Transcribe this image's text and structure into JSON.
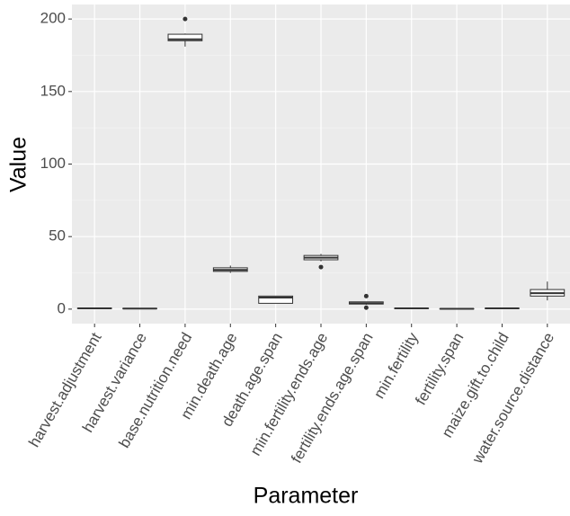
{
  "chart_data": {
    "type": "boxplot",
    "x_label": "Parameter",
    "y_label": "Value",
    "categories": [
      "harvest.adjustment",
      "harvest.variance",
      "base.nutrition.need",
      "min.death.age",
      "death.age.span",
      "min.fertility.ends.age",
      "fertility.ends.age.span",
      "min.fertility",
      "fertility.span",
      "maize.gift.to.child",
      "water.source.distance"
    ],
    "min": [
      0.2,
      0.2,
      181,
      25,
      4,
      33,
      3,
      0.2,
      0,
      0.2,
      6
    ],
    "q1": [
      0.4,
      0.3,
      185,
      26,
      4,
      34,
      3.5,
      0.4,
      0.1,
      0.4,
      9
    ],
    "median": [
      0.5,
      0.4,
      186,
      27,
      8,
      35.5,
      4,
      0.5,
      0.2,
      0.5,
      11
    ],
    "q3": [
      0.7,
      0.5,
      189.5,
      28.5,
      9,
      37,
      5,
      0.6,
      0.3,
      0.6,
      13.5
    ],
    "max": [
      0.9,
      0.7,
      190,
      30,
      9,
      38,
      5,
      0.8,
      0.4,
      0.8,
      19
    ],
    "outliers": [
      [],
      [],
      [
        200
      ],
      [],
      [],
      [
        29
      ],
      [
        9,
        1
      ],
      [],
      [],
      [],
      []
    ],
    "ylim": [
      -10,
      210
    ],
    "yticks": [
      0,
      50,
      100,
      150,
      200
    ],
    "yminor": [
      25,
      75,
      125,
      175
    ],
    "grid": true,
    "color": "#333333",
    "box_fill": "#ffffff"
  }
}
